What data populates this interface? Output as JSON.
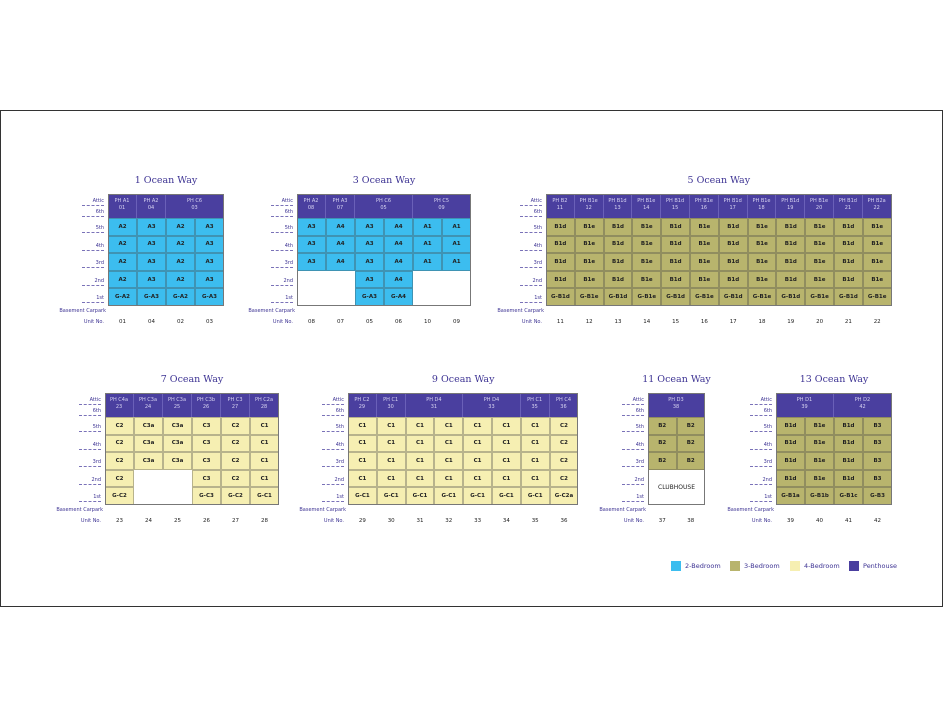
{
  "floor_labels": [
    "Attic",
    "6th",
    "5th",
    "4th",
    "3rd",
    "2nd",
    "1st",
    "Basement Carpark"
  ],
  "unit_no_label": "Unit No.",
  "colors": {
    "penthouse": "#4a3f9f",
    "2br": "#3cbdef",
    "3br": "#b8b46d",
    "4br": "#f6efb2"
  },
  "buildings": [
    {
      "title": "1 Ocean Way",
      "type": "2br",
      "penthouses": [
        {
          "label": "PH A1",
          "unit": "01",
          "span": 1
        },
        {
          "label": "PH A2",
          "unit": "04",
          "span": 1
        },
        {
          "label": "PH C6",
          "unit": "03",
          "span": 2
        }
      ],
      "floors": [
        [
          "A2",
          "A3",
          "A2",
          "A3"
        ],
        [
          "A2",
          "A3",
          "A2",
          "A3"
        ],
        [
          "A2",
          "A3",
          "A2",
          "A3"
        ],
        [
          "A2",
          "A3",
          "A2",
          "A3"
        ],
        [
          "G-A2",
          "G-A3",
          "G-A2",
          "G-A3"
        ]
      ],
      "units": [
        "01",
        "04",
        "02",
        "03"
      ]
    },
    {
      "title": "3 Ocean Way",
      "type": "2br",
      "penthouses": [
        {
          "label": "PH A2",
          "unit": "08",
          "span": 1
        },
        {
          "label": "PH A3",
          "unit": "07",
          "span": 1
        },
        {
          "label": "PH C6",
          "unit": "05",
          "span": 2
        },
        {
          "label": "PH C5",
          "unit": "09",
          "span": 2
        }
      ],
      "floors": [
        [
          "A3",
          "A4",
          "A3",
          "A4",
          "A1",
          "A1"
        ],
        [
          "A3",
          "A4",
          "A3",
          "A4",
          "A1",
          "A1"
        ],
        [
          "A3",
          "A4",
          "A3",
          "A4",
          "A1",
          "A1"
        ],
        [
          null,
          null,
          "A3",
          "A4",
          null,
          null
        ],
        [
          null,
          null,
          "G-A3",
          "G-A4",
          null,
          null
        ]
      ],
      "units": [
        "08",
        "07",
        "05",
        "06",
        "10",
        "09"
      ]
    },
    {
      "title": "5 Ocean Way",
      "type": "3br",
      "penthouses": [
        {
          "label": "PH B2",
          "unit": "11",
          "span": 1
        },
        {
          "label": "PH B1e",
          "unit": "12",
          "span": 1
        },
        {
          "label": "PH B1d",
          "unit": "13",
          "span": 1
        },
        {
          "label": "PH B1e",
          "unit": "14",
          "span": 1
        },
        {
          "label": "PH B1d",
          "unit": "15",
          "span": 1
        },
        {
          "label": "PH B1e",
          "unit": "16",
          "span": 1
        },
        {
          "label": "PH B1d",
          "unit": "17",
          "span": 1
        },
        {
          "label": "PH B1e",
          "unit": "18",
          "span": 1
        },
        {
          "label": "PH B1d",
          "unit": "19",
          "span": 1
        },
        {
          "label": "PH B1e",
          "unit": "20",
          "span": 1
        },
        {
          "label": "PH B1d",
          "unit": "21",
          "span": 1
        },
        {
          "label": "PH B2a",
          "unit": "22",
          "span": 1
        }
      ],
      "floors": [
        [
          "B1d",
          "B1e",
          "B1d",
          "B1e",
          "B1d",
          "B1e",
          "B1d",
          "B1e",
          "B1d",
          "B1e",
          "B1d",
          "B1e"
        ],
        [
          "B1d",
          "B1e",
          "B1d",
          "B1e",
          "B1d",
          "B1e",
          "B1d",
          "B1e",
          "B1d",
          "B1e",
          "B1d",
          "B1e"
        ],
        [
          "B1d",
          "B1e",
          "B1d",
          "B1e",
          "B1d",
          "B1e",
          "B1d",
          "B1e",
          "B1d",
          "B1e",
          "B1d",
          "B1e"
        ],
        [
          "B1d",
          "B1e",
          "B1d",
          "B1e",
          "B1d",
          "B1e",
          "B1d",
          "B1e",
          "B1d",
          "B1e",
          "B1d",
          "B1e"
        ],
        [
          "G-B1d",
          "G-B1e",
          "G-B1d",
          "G-B1e",
          "G-B1d",
          "G-B1e",
          "G-B1d",
          "G-B1e",
          "G-B1d",
          "G-B1e",
          "G-B1d",
          "G-B1e"
        ]
      ],
      "units": [
        "11",
        "12",
        "13",
        "14",
        "15",
        "16",
        "17",
        "18",
        "19",
        "20",
        "21",
        "22"
      ]
    },
    {
      "title": "7 Ocean Way",
      "type": "4br",
      "penthouses": [
        {
          "label": "PH C4a",
          "unit": "23",
          "span": 1
        },
        {
          "label": "PH C3a",
          "unit": "24",
          "span": 1
        },
        {
          "label": "PH C3a",
          "unit": "25",
          "span": 1
        },
        {
          "label": "PH C3b",
          "unit": "26",
          "span": 1
        },
        {
          "label": "PH C3",
          "unit": "27",
          "span": 1
        },
        {
          "label": "PH C2a",
          "unit": "28",
          "span": 1
        }
      ],
      "floors": [
        [
          "C2",
          "C3a",
          "C3a",
          "C3",
          "C2",
          "C1"
        ],
        [
          "C2",
          "C3a",
          "C3a",
          "C3",
          "C2",
          "C1"
        ],
        [
          "C2",
          "C3a",
          "C3a",
          "C3",
          "C2",
          "C1"
        ],
        [
          "C2",
          null,
          null,
          "C3",
          "C2",
          "C1"
        ],
        [
          "G-C2",
          null,
          null,
          "G-C3",
          "G-C2",
          "G-C1"
        ]
      ],
      "units": [
        "23",
        "24",
        "25",
        "26",
        "27",
        "28"
      ]
    },
    {
      "title": "9 Ocean Way",
      "type": "4br",
      "penthouses": [
        {
          "label": "PH C2",
          "unit": "29",
          "span": 1
        },
        {
          "label": "PH C1",
          "unit": "30",
          "span": 1
        },
        {
          "label": "PH D4",
          "unit": "31",
          "span": 2
        },
        {
          "label": "PH D4",
          "unit": "33",
          "span": 2
        },
        {
          "label": "PH C1",
          "unit": "35",
          "span": 1
        },
        {
          "label": "PH C4",
          "unit": "36",
          "span": 1
        }
      ],
      "floors": [
        [
          "C1",
          "C1",
          "C1",
          "C1",
          "C1",
          "C1",
          "C1",
          "C2"
        ],
        [
          "C1",
          "C1",
          "C1",
          "C1",
          "C1",
          "C1",
          "C1",
          "C2"
        ],
        [
          "C1",
          "C1",
          "C1",
          "C1",
          "C1",
          "C1",
          "C1",
          "C2"
        ],
        [
          "C1",
          "C1",
          "C1",
          "C1",
          "C1",
          "C1",
          "C1",
          "C2"
        ],
        [
          "G-C1",
          "G-C1",
          "G-C1",
          "G-C1",
          "G-C1",
          "G-C1",
          "G-C1",
          "G-C2a"
        ]
      ],
      "units": [
        "29",
        "30",
        "31",
        "32",
        "33",
        "34",
        "35",
        "36"
      ]
    },
    {
      "title": "11 Ocean Way",
      "type": "3br",
      "penthouses": [
        {
          "label": "PH D3",
          "unit": "38",
          "span": 2
        }
      ],
      "floors": [
        [
          "B2",
          "B2"
        ],
        [
          "B2",
          "B2"
        ],
        [
          "B2",
          "B2"
        ],
        [
          null,
          null
        ],
        [
          null,
          null
        ]
      ],
      "overlay": "CLUBHOUSE",
      "units": [
        "37",
        "38"
      ]
    },
    {
      "title": "13 Ocean Way",
      "type": "3br",
      "penthouses": [
        {
          "label": "PH D1",
          "unit": "39",
          "span": 2
        },
        {
          "label": "PH D2",
          "unit": "42",
          "span": 2
        }
      ],
      "floors": [
        [
          "B1d",
          "B1e",
          "B1d",
          "B3"
        ],
        [
          "B1d",
          "B1e",
          "B1d",
          "B3"
        ],
        [
          "B1d",
          "B1e",
          "B1d",
          "B3"
        ],
        [
          "B1d",
          "B1e",
          "B1d",
          "B3"
        ],
        [
          "G-B1a",
          "G-B1b",
          "G-B1c",
          "G-B3"
        ]
      ],
      "units": [
        "39",
        "40",
        "41",
        "42"
      ]
    }
  ],
  "legend": [
    {
      "key": "2br",
      "label": "2-Bedroom"
    },
    {
      "key": "3br",
      "label": "3-Bedroom"
    },
    {
      "key": "4br",
      "label": "4-Bedroom"
    },
    {
      "key": "penthouse",
      "label": "Penthouse"
    }
  ]
}
